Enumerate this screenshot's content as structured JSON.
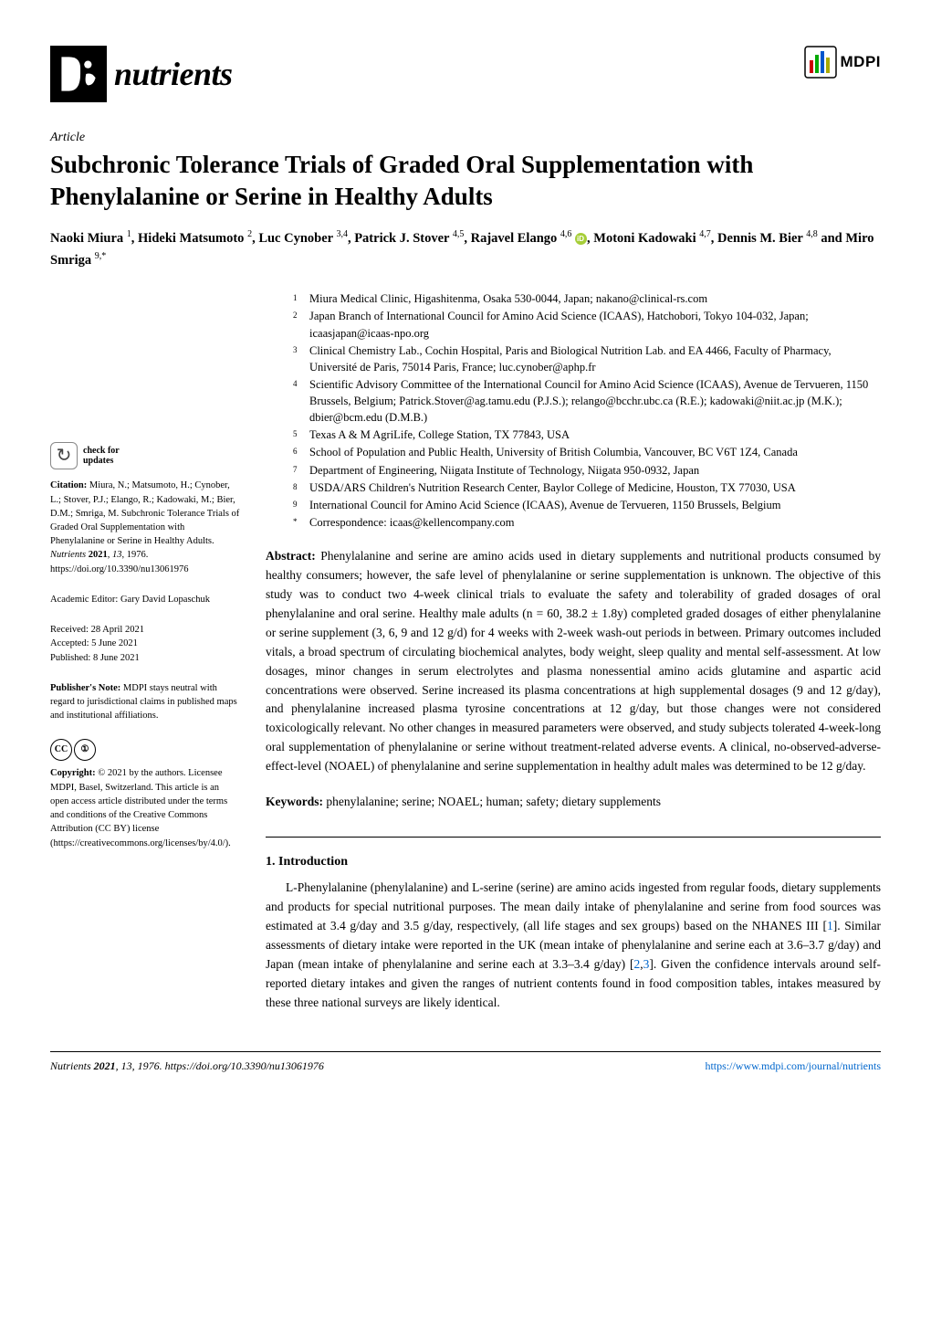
{
  "journal": {
    "name": "nutrients",
    "publisher": "MDPI"
  },
  "article": {
    "type": "Article",
    "title": "Subchronic Tolerance Trials of Graded Oral Supplementation with Phenylalanine or Serine in Healthy Adults",
    "authors_html": "Naoki Miura <sup>1</sup>, Hideki Matsumoto <sup>2</sup>, Luc Cynober <sup>3,4</sup>, Patrick J. Stover <sup>4,5</sup>, Rajavel Elango <sup>4,6</sup> <span class='orcid-icon' data-name='orcid-icon' data-interactable='false'></span>, Motoni Kadowaki <sup>4,7</sup>, Dennis M. Bier <sup>4,8</sup> and Miro Smriga <sup>9,*</sup>"
  },
  "affiliations": [
    {
      "n": "1",
      "text": "Miura Medical Clinic, Higashitenma, Osaka 530-0044, Japan; nakano@clinical-rs.com"
    },
    {
      "n": "2",
      "text": "Japan Branch of International Council for Amino Acid Science (ICAAS), Hatchobori, Tokyo 104-032, Japan; icaasjapan@icaas-npo.org"
    },
    {
      "n": "3",
      "text": "Clinical Chemistry Lab., Cochin Hospital, Paris and Biological Nutrition Lab. and EA 4466, Faculty of Pharmacy, Université de Paris, 75014 Paris, France; luc.cynober@aphp.fr"
    },
    {
      "n": "4",
      "text": "Scientific Advisory Committee of the International Council for Amino Acid Science (ICAAS), Avenue de Tervueren, 1150 Brussels, Belgium; Patrick.Stover@ag.tamu.edu (P.J.S.); relango@bcchr.ubc.ca (R.E.); kadowaki@niit.ac.jp (M.K.); dbier@bcm.edu (D.M.B.)"
    },
    {
      "n": "5",
      "text": "Texas A & M AgriLife, College Station, TX 77843, USA"
    },
    {
      "n": "6",
      "text": "School of Population and Public Health, University of British Columbia, Vancouver, BC V6T 1Z4, Canada"
    },
    {
      "n": "7",
      "text": "Department of Engineering, Niigata Institute of Technology, Niigata 950-0932, Japan"
    },
    {
      "n": "8",
      "text": "USDA/ARS Children's Nutrition Research Center, Baylor College of Medicine, Houston, TX 77030, USA"
    },
    {
      "n": "9",
      "text": "International Council for Amino Acid Science (ICAAS), Avenue de Tervueren, 1150 Brussels, Belgium"
    },
    {
      "n": "*",
      "text": "Correspondence: icaas@kellencompany.com"
    }
  ],
  "abstract": {
    "label": "Abstract:",
    "text": "Phenylalanine and serine are amino acids used in dietary supplements and nutritional products consumed by healthy consumers; however, the safe level of phenylalanine or serine supplementation is unknown. The objective of this study was to conduct two 4-week clinical trials to evaluate the safety and tolerability of graded dosages of oral phenylalanine and oral serine. Healthy male adults (n = 60, 38.2 ± 1.8y) completed graded dosages of either phenylalanine or serine supplement (3, 6, 9 and 12 g/d) for 4 weeks with 2-week wash-out periods in between. Primary outcomes included vitals, a broad spectrum of circulating biochemical analytes, body weight, sleep quality and mental self-assessment. At low dosages, minor changes in serum electrolytes and plasma nonessential amino acids glutamine and aspartic acid concentrations were observed. Serine increased its plasma concentrations at high supplemental dosages (9 and 12 g/day), and phenylalanine increased plasma tyrosine concentrations at 12 g/day, but those changes were not considered toxicologically relevant. No other changes in measured parameters were observed, and study subjects tolerated 4-week-long oral supplementation of phenylalanine or serine without treatment-related adverse events. A clinical, no-observed-adverse-effect-level (NOAEL) of phenylalanine and serine supplementation in healthy adult males was determined to be 12 g/day."
  },
  "keywords": {
    "label": "Keywords:",
    "text": "phenylalanine; serine; NOAEL; human; safety; dietary supplements"
  },
  "sidebar": {
    "check_updates": "check for updates",
    "citation": "Citation: Miura, N.; Matsumoto, H.; Cynober, L.; Stover, P.J.; Elango, R.; Kadowaki, M.; Bier, D.M.; Smriga, M. Subchronic Tolerance Trials of Graded Oral Supplementation with Phenylalanine or Serine in Healthy Adults. Nutrients 2021, 13, 1976. https://doi.org/10.3390/nu13061976",
    "editor": "Academic Editor: Gary David Lopaschuk",
    "dates": "Received: 28 April 2021\nAccepted: 5 June 2021\nPublished: 8 June 2021",
    "publishers_note": "Publisher's Note: MDPI stays neutral with regard to jurisdictional claims in published maps and institutional affiliations.",
    "copyright": "Copyright: © 2021 by the authors. Licensee MDPI, Basel, Switzerland. This article is an open access article distributed under the terms and conditions of the Creative Commons Attribution (CC BY) license (https://creativecommons.org/licenses/by/4.0/)."
  },
  "section1": {
    "heading": "1. Introduction",
    "body_html": "L-Phenylalanine (phenylalanine) and L-serine (serine) are amino acids ingested from regular foods, dietary supplements and products for special nutritional purposes. The mean daily intake of phenylalanine and serine from food sources was estimated at 3.4 g/day and 3.5 g/day, respectively, (all life stages and sex groups) based on the NHANES III [<span class='ref-link'>1</span>]. Similar assessments of dietary intake were reported in the UK (mean intake of phenylalanine and serine each at 3.6–3.7 g/day) and Japan (mean intake of phenylalanine and serine each at 3.3–3.4 g/day) [<span class='ref-link'>2</span>,<span class='ref-link'>3</span>]. Given the confidence intervals around self-reported dietary intakes and given the ranges of nutrient contents found in food composition tables, intakes measured by these three national surveys are likely identical."
  },
  "footer": {
    "left_html": "<i>Nutrients</i> <b>2021</b>, <i>13</i>, 1976. https://doi.org/10.3390/nu13061976",
    "right": "https://www.mdpi.com/journal/nutrients"
  }
}
